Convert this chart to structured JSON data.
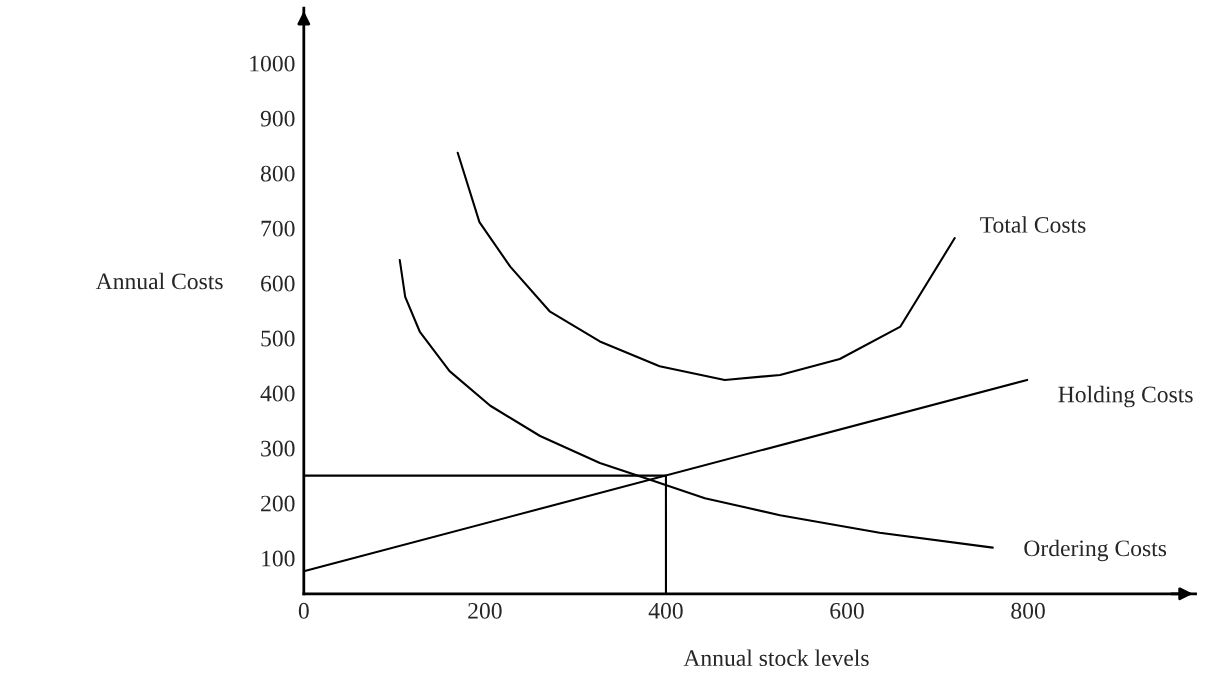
{
  "chart_data": {
    "type": "line",
    "xlabel": "Annual stock levels",
    "ylabel": "Annual Costs",
    "xlim": [
      0,
      985
    ],
    "ylim": [
      35,
      1100
    ],
    "xticks": [
      0,
      200,
      400,
      600,
      800
    ],
    "yticks": [
      100,
      200,
      300,
      400,
      500,
      600,
      700,
      800,
      900,
      1000
    ],
    "grid": false,
    "legend": false,
    "marker": "none",
    "line_style": "solid",
    "series": [
      {
        "name": "Total Costs",
        "color": "#000000",
        "x": [
          170,
          194,
          228,
          272,
          327,
          393,
          465,
          526,
          592,
          659,
          719
        ],
        "values": [
          837,
          711,
          630,
          548,
          494,
          449,
          424,
          433,
          462,
          521,
          682
        ]
      },
      {
        "name": "Holding Costs",
        "color": "#000000",
        "x": [
          0,
          799
        ],
        "values": [
          76,
          424
        ]
      },
      {
        "name": "Ordering Costs",
        "color": "#000000",
        "x": [
          106,
          112,
          128,
          161,
          206,
          261,
          327,
          385,
          443,
          526,
          636,
          761
        ],
        "values": [
          642,
          575,
          512,
          440,
          377,
          322,
          273,
          241,
          209,
          178,
          146,
          119
        ]
      },
      {
        "color": "#000000",
        "x": [
          0,
          400,
          400
        ],
        "values": [
          250,
          250,
          35
        ]
      }
    ]
  }
}
